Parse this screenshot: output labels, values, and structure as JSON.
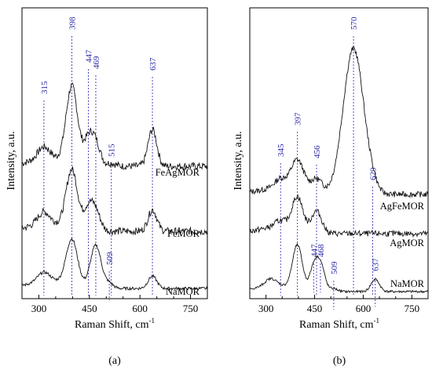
{
  "chart_data": [
    {
      "type": "line",
      "panel": "(a)",
      "xlabel": "Raman Shift, cm",
      "xlabel_sup": "-1",
      "ylabel": "Intensity, a.u.",
      "xlim": [
        250,
        800
      ],
      "xticks": [
        300,
        450,
        600,
        750
      ],
      "series": [
        {
          "name": "FeAgMOR",
          "offset": 2.0,
          "peaks": [
            [
              315,
              0.2,
              18
            ],
            [
              398,
              1.25,
              17
            ],
            [
              447,
              0.4,
              14
            ],
            [
              469,
              0.35,
              14
            ],
            [
              515,
              0.05,
              12
            ],
            [
              637,
              0.6,
              13
            ]
          ]
        },
        {
          "name": "FeMOR",
          "offset": 1.0,
          "peaks": [
            [
              315,
              0.2,
              18
            ],
            [
              398,
              0.95,
              17
            ],
            [
              447,
              0.35,
              14
            ],
            [
              469,
              0.3,
              14
            ],
            [
              637,
              0.35,
              13
            ]
          ]
        },
        {
          "name": "NaMOR",
          "offset": 0.0,
          "peaks": [
            [
              315,
              0.15,
              18
            ],
            [
              398,
              0.75,
              17
            ],
            [
              469,
              0.7,
              16
            ],
            [
              509,
              0.08,
              12
            ],
            [
              637,
              0.2,
              13
            ]
          ]
        }
      ],
      "annotations": [
        {
          "text": "315",
          "x": 315
        },
        {
          "text": "398",
          "x": 398
        },
        {
          "text": "447",
          "x": 447
        },
        {
          "text": "469",
          "x": 469
        },
        {
          "text": "515",
          "x": 515
        },
        {
          "text": "637",
          "x": 637
        },
        {
          "text": "509",
          "x": 509
        }
      ]
    },
    {
      "type": "line",
      "panel": "(b)",
      "xlabel": "Raman Shift, cm",
      "xlabel_sup": "-1",
      "ylabel": "Intensity, a.u.",
      "xlim": [
        250,
        800
      ],
      "xticks": [
        300,
        450,
        600,
        750
      ],
      "series": [
        {
          "name": "AgFeMOR",
          "offset": 2.0,
          "peaks": [
            [
              345,
              0.2,
              18
            ],
            [
              397,
              0.65,
              20
            ],
            [
              456,
              0.3,
              18
            ],
            [
              570,
              3.0,
              32
            ],
            [
              629,
              0.08,
              12
            ]
          ]
        },
        {
          "name": "AgMOR",
          "offset": 1.0,
          "peaks": [
            [
              345,
              0.15,
              18
            ],
            [
              397,
              0.7,
              17
            ],
            [
              456,
              0.45,
              16
            ]
          ]
        },
        {
          "name": "NaMOR",
          "offset": 0.0,
          "peaks": [
            [
              315,
              0.15,
              18
            ],
            [
              397,
              0.9,
              15
            ],
            [
              447,
              0.45,
              12
            ],
            [
              468,
              0.55,
              13
            ],
            [
              509,
              0.06,
              12
            ],
            [
              637,
              0.25,
              13
            ]
          ]
        }
      ],
      "annotations": [
        {
          "text": "345",
          "x": 345
        },
        {
          "text": "397",
          "x": 397
        },
        {
          "text": "456",
          "x": 456
        },
        {
          "text": "570",
          "x": 570
        },
        {
          "text": "629",
          "x": 629
        },
        {
          "text": "447",
          "x": 447
        },
        {
          "text": "468",
          "x": 468
        },
        {
          "text": "509",
          "x": 509
        },
        {
          "text": "637",
          "x": 637
        }
      ]
    }
  ]
}
